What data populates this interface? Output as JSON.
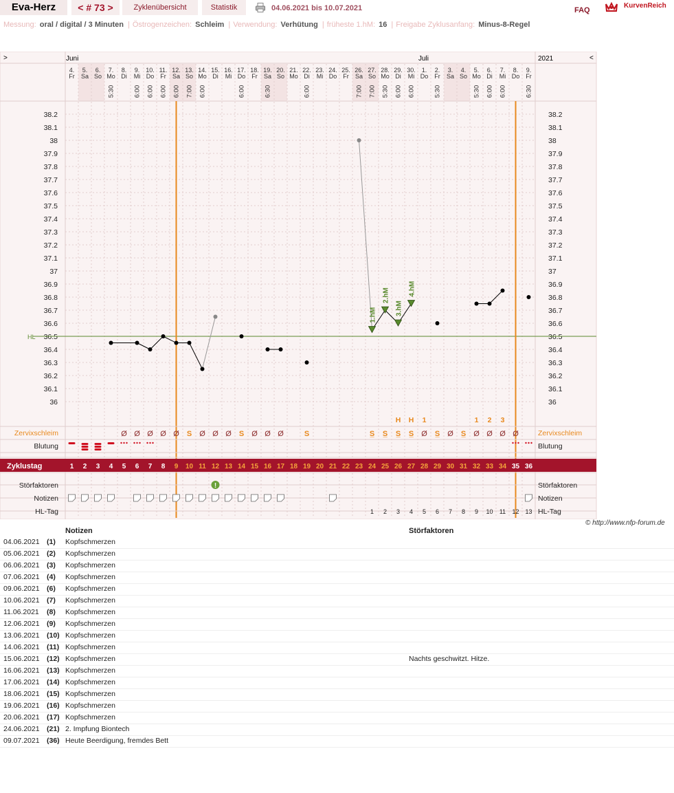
{
  "header": {
    "user": "Eva-Herz",
    "cycle_nav": "< # 73 >",
    "tab_overview": "Zyklenübersicht",
    "tab_stats": "Statistik",
    "range": "04.06.2021 bis 10.07.2021",
    "faq": "FAQ",
    "brand": "KurvenReich"
  },
  "meta": [
    {
      "key": "Messung:",
      "value": "oral / digital / 3 Minuten"
    },
    {
      "key": "Östrogenzeichen:",
      "value": "Schleim"
    },
    {
      "key": "Verwendung:",
      "value": "Verhütung"
    },
    {
      "key": "früheste 1.hM:",
      "value": "16"
    },
    {
      "key": "Freigabe Zyklusanfang:",
      "value": "Minus-8-Regel"
    }
  ],
  "chart_data": {
    "type": "line",
    "nav_left": ">",
    "nav_right": "<",
    "year": "2021",
    "months": [
      {
        "label": "Juni",
        "at": 0
      },
      {
        "label": "Juli",
        "at": 27
      }
    ],
    "days": [
      {
        "d": "4.",
        "w": "Fr",
        "t": ""
      },
      {
        "d": "5.",
        "w": "Sa",
        "t": ""
      },
      {
        "d": "6.",
        "w": "So",
        "t": ""
      },
      {
        "d": "7.",
        "w": "Mo",
        "t": "5:30"
      },
      {
        "d": "8.",
        "w": "Di",
        "t": ""
      },
      {
        "d": "9.",
        "w": "Mi",
        "t": "6:00"
      },
      {
        "d": "10.",
        "w": "Do",
        "t": "6:00"
      },
      {
        "d": "11.",
        "w": "Fr",
        "t": "6:00"
      },
      {
        "d": "12.",
        "w": "Sa",
        "t": "6:00"
      },
      {
        "d": "13.",
        "w": "So",
        "t": "7:00"
      },
      {
        "d": "14.",
        "w": "Mo",
        "t": "6:00"
      },
      {
        "d": "15.",
        "w": "Di",
        "t": ""
      },
      {
        "d": "16.",
        "w": "Mi",
        "t": ""
      },
      {
        "d": "17.",
        "w": "Do",
        "t": "6:00"
      },
      {
        "d": "18.",
        "w": "Fr",
        "t": ""
      },
      {
        "d": "19.",
        "w": "Sa",
        "t": "6:30"
      },
      {
        "d": "20.",
        "w": "So",
        "t": ""
      },
      {
        "d": "21.",
        "w": "Mo",
        "t": ""
      },
      {
        "d": "22.",
        "w": "Di",
        "t": "6:00"
      },
      {
        "d": "23.",
        "w": "Mi",
        "t": ""
      },
      {
        "d": "24.",
        "w": "Do",
        "t": ""
      },
      {
        "d": "25.",
        "w": "Fr",
        "t": ""
      },
      {
        "d": "26.",
        "w": "Sa",
        "t": "7:00"
      },
      {
        "d": "27.",
        "w": "So",
        "t": "7:00"
      },
      {
        "d": "28.",
        "w": "Mo",
        "t": "5:30"
      },
      {
        "d": "29.",
        "w": "Di",
        "t": "6:00"
      },
      {
        "d": "30.",
        "w": "Mi",
        "t": "6:00"
      },
      {
        "d": "1.",
        "w": "Do",
        "t": ""
      },
      {
        "d": "2.",
        "w": "Fr",
        "t": "5:30"
      },
      {
        "d": "3.",
        "w": "Sa",
        "t": ""
      },
      {
        "d": "4.",
        "w": "So",
        "t": ""
      },
      {
        "d": "5.",
        "w": "Mo",
        "t": "5:30"
      },
      {
        "d": "6.",
        "w": "Di",
        "t": "6:00"
      },
      {
        "d": "7.",
        "w": "Mi",
        "t": "6:00"
      },
      {
        "d": "8.",
        "w": "Do",
        "t": ""
      },
      {
        "d": "9.",
        "w": "Fr",
        "t": "6:30"
      }
    ],
    "ylim": [
      36.0,
      38.2
    ],
    "yticks": [
      "38.2",
      "38.1",
      "38",
      "37.9",
      "37.8",
      "37.7",
      "37.6",
      "37.5",
      "37.4",
      "37.3",
      "37.2",
      "37.1",
      "37",
      "36.9",
      "36.8",
      "36.7",
      "36.6",
      "36.5",
      "36.4",
      "36.3",
      "36.2",
      "36.1",
      "36"
    ],
    "coverline": 36.5,
    "coverline_label": "HL",
    "temps": [
      {
        "day": 4,
        "v": 36.45
      },
      {
        "day": 6,
        "v": 36.45
      },
      {
        "day": 7,
        "v": 36.4
      },
      {
        "day": 8,
        "v": 36.5
      },
      {
        "day": 9,
        "v": 36.45
      },
      {
        "day": 10,
        "v": 36.45
      },
      {
        "day": 11,
        "v": 36.25
      },
      {
        "day": 12,
        "v": 36.65,
        "excluded": true
      },
      {
        "day": 14,
        "v": 36.5
      },
      {
        "day": 16,
        "v": 36.4
      },
      {
        "day": 17,
        "v": 36.4
      },
      {
        "day": 19,
        "v": 36.3
      },
      {
        "day": 23,
        "v": 38.0,
        "excluded": true
      },
      {
        "day": 24,
        "v": 36.55,
        "hm": "1.hM"
      },
      {
        "day": 25,
        "v": 36.7,
        "hm": "2.hM"
      },
      {
        "day": 26,
        "v": 36.6,
        "hm": "3.hM"
      },
      {
        "day": 27,
        "v": 36.75,
        "hm": "4.hM"
      },
      {
        "day": 29,
        "v": 36.6
      },
      {
        "day": 32,
        "v": 36.75
      },
      {
        "day": 33,
        "v": 36.75
      },
      {
        "day": 34,
        "v": 36.85
      },
      {
        "day": 36,
        "v": 36.8
      }
    ],
    "segments": [
      [
        4,
        6
      ],
      [
        6,
        7
      ],
      [
        7,
        8
      ],
      [
        8,
        9
      ],
      [
        9,
        10
      ],
      [
        10,
        11
      ],
      [
        11,
        12
      ],
      [
        16,
        17
      ],
      [
        23,
        24
      ],
      [
        24,
        25
      ],
      [
        25,
        26
      ],
      [
        26,
        27
      ],
      [
        32,
        33
      ],
      [
        33,
        34
      ]
    ],
    "cycle_lines": [
      8.5,
      34.5
    ],
    "peak_marks": [
      {
        "day": 26,
        "label": "H"
      },
      {
        "day": 27,
        "label": "H"
      },
      {
        "day": 28,
        "label": "1"
      },
      {
        "day": 32,
        "label": "1"
      },
      {
        "day": 33,
        "label": "2"
      },
      {
        "day": 34,
        "label": "3"
      }
    ],
    "mucus": {
      "label": "Zervixschleim",
      "values": {
        "5": "Ø",
        "6": "Ø",
        "7": "Ø",
        "8": "Ø",
        "9": "Ø",
        "10": "S",
        "11": "Ø",
        "12": "Ø",
        "13": "Ø",
        "14": "S",
        "15": "Ø",
        "16": "Ø",
        "17": "Ø",
        "19": "S",
        "24": "S+",
        "25": "S+",
        "26": "S+",
        "27": "S+",
        "28": "Ø",
        "29": "S+",
        "30": "Ø",
        "31": "S+",
        "32": "Ø",
        "33": "Ø",
        "34": "Ø",
        "35": "Ø"
      }
    },
    "bleeding": {
      "label": "Blutung",
      "values": {
        "1": "medium",
        "2": "heavy",
        "3": "heavy",
        "4": "medium",
        "5": "spot",
        "6": "spot",
        "7": "spot",
        "35": "spot",
        "36": "spot"
      }
    },
    "cycle_day_label": "Zyklustag",
    "cycle_days": [
      "1",
      "2",
      "3",
      "4",
      "5",
      "6",
      "7",
      "8",
      "9",
      "10",
      "11",
      "12",
      "13",
      "14",
      "15",
      "16",
      "17",
      "18",
      "19",
      "20",
      "21",
      "22",
      "23",
      "24",
      "25",
      "26",
      "27",
      "28",
      "29",
      "30",
      "31",
      "32",
      "33",
      "34",
      "35",
      "36"
    ],
    "disturbance_label": "Störfaktoren",
    "disturbance_days": [
      12
    ],
    "notes_label": "Notizen",
    "note_days": [
      1,
      2,
      3,
      4,
      6,
      7,
      8,
      9,
      10,
      11,
      12,
      13,
      14,
      15,
      16,
      17,
      21,
      36
    ],
    "hl_label": "HL-Tag",
    "hl_days": {
      "24": "1",
      "25": "2",
      "26": "3",
      "27": "4",
      "28": "5",
      "29": "6",
      "30": "7",
      "31": "8",
      "32": "9",
      "33": "10",
      "34": "11",
      "35": "12",
      "36": "13"
    }
  },
  "copyright": "© http://www.nfp-forum.de",
  "notes": {
    "col_notes": "Notizen",
    "col_disturb": "Störfaktoren",
    "rows": [
      {
        "date": "04.06.2021",
        "day": "(1)",
        "note": "Kopfschmerzen",
        "disturb": ""
      },
      {
        "date": "05.06.2021",
        "day": "(2)",
        "note": "Kopfschmerzen",
        "disturb": ""
      },
      {
        "date": "06.06.2021",
        "day": "(3)",
        "note": "Kopfschmerzen",
        "disturb": ""
      },
      {
        "date": "07.06.2021",
        "day": "(4)",
        "note": "Kopfschmerzen",
        "disturb": ""
      },
      {
        "date": "09.06.2021",
        "day": "(6)",
        "note": "Kopfschmerzen",
        "disturb": ""
      },
      {
        "date": "10.06.2021",
        "day": "(7)",
        "note": "Kopfschmerzen",
        "disturb": ""
      },
      {
        "date": "11.06.2021",
        "day": "(8)",
        "note": "Kopfschmerzen",
        "disturb": ""
      },
      {
        "date": "12.06.2021",
        "day": "(9)",
        "note": "Kopfschmerzen",
        "disturb": ""
      },
      {
        "date": "13.06.2021",
        "day": "(10)",
        "note": "Kopfschmerzen",
        "disturb": ""
      },
      {
        "date": "14.06.2021",
        "day": "(11)",
        "note": "Kopfschmerzen",
        "disturb": ""
      },
      {
        "date": "15.06.2021",
        "day": "(12)",
        "note": "Kopfschmerzen",
        "disturb": "Nachts geschwitzt. Hitze."
      },
      {
        "date": "16.06.2021",
        "day": "(13)",
        "note": "Kopfschmerzen",
        "disturb": ""
      },
      {
        "date": "17.06.2021",
        "day": "(14)",
        "note": "Kopfschmerzen",
        "disturb": ""
      },
      {
        "date": "18.06.2021",
        "day": "(15)",
        "note": "Kopfschmerzen",
        "disturb": ""
      },
      {
        "date": "19.06.2021",
        "day": "(16)",
        "note": "Kopfschmerzen",
        "disturb": ""
      },
      {
        "date": "20.06.2021",
        "day": "(17)",
        "note": "Kopfschmerzen",
        "disturb": ""
      },
      {
        "date": "24.06.2021",
        "day": "(21)",
        "note": "2. Impfung Biontech",
        "disturb": ""
      },
      {
        "date": "09.07.2021",
        "day": "(36)",
        "note": "Heute Beerdigung, fremdes Bett",
        "disturb": ""
      }
    ]
  },
  "colors": {
    "accent": "#a3142b",
    "orange": "#e8891e",
    "green": "#5a8a2e",
    "grid": "#e2cccc"
  }
}
